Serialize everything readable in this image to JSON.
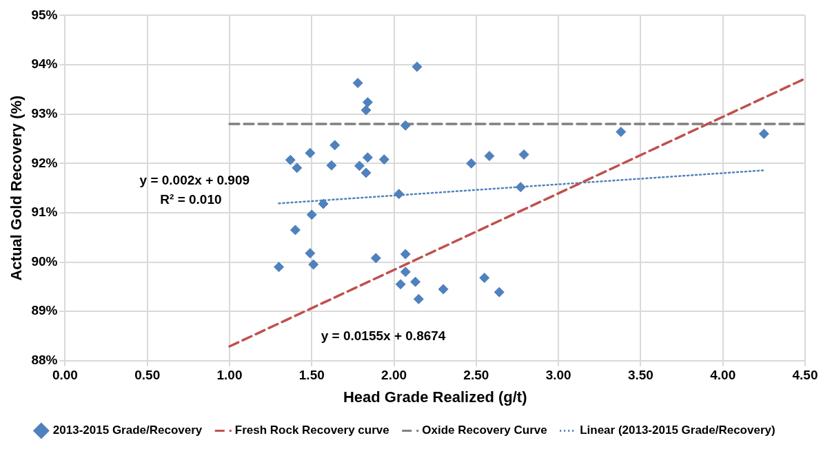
{
  "chart_data": {
    "type": "scatter",
    "xlabel": "Head Grade Realized (g/t)",
    "ylabel": "Actual Gold Recovery (%)",
    "xlim": [
      0,
      4.5
    ],
    "ylim": [
      88,
      95
    ],
    "xticks": [
      {
        "value": 0,
        "label": "0.00"
      },
      {
        "value": 0.5,
        "label": "0.50"
      },
      {
        "value": 1,
        "label": "1.00"
      },
      {
        "value": 1.5,
        "label": "1.50"
      },
      {
        "value": 2,
        "label": "2.00"
      },
      {
        "value": 2.5,
        "label": "2.50"
      },
      {
        "value": 3,
        "label": "3.00"
      },
      {
        "value": 3.5,
        "label": "3.50"
      },
      {
        "value": 4,
        "label": "4.00"
      },
      {
        "value": 4.5,
        "label": "4.50"
      }
    ],
    "yticks": [
      {
        "value": 88,
        "label": "88%"
      },
      {
        "value": 89,
        "label": "89%"
      },
      {
        "value": 90,
        "label": "90%"
      },
      {
        "value": 91,
        "label": "91%"
      },
      {
        "value": 92,
        "label": "92%"
      },
      {
        "value": 93,
        "label": "93%"
      },
      {
        "value": 94,
        "label": "94%"
      },
      {
        "value": 95,
        "label": "95%"
      }
    ],
    "grid": true,
    "legend": "bottom",
    "marker": "diamond",
    "series": [
      {
        "name": "2013-2015 Grade/Recovery",
        "color": "#4f81bd",
        "x": [
          1.3,
          1.37,
          1.41,
          1.49,
          1.4,
          1.5,
          1.49,
          1.51,
          1.57,
          1.62,
          1.64,
          1.78,
          1.84,
          1.83,
          1.79,
          1.84,
          1.83,
          1.94,
          1.89,
          2.14,
          2.07,
          2.03,
          2.07,
          2.07,
          2.04,
          2.13,
          2.15,
          2.3,
          2.47,
          2.58,
          2.79,
          2.77,
          2.55,
          2.64,
          3.38,
          4.25
        ],
        "values": [
          89.9,
          92.07,
          91.91,
          92.21,
          90.65,
          90.96,
          90.18,
          89.95,
          91.18,
          91.96,
          92.37,
          93.63,
          93.24,
          93.08,
          91.95,
          92.12,
          91.81,
          92.08,
          90.08,
          93.96,
          92.77,
          91.38,
          90.16,
          89.8,
          89.55,
          89.6,
          89.25,
          89.45,
          92.0,
          92.15,
          92.18,
          91.52,
          89.68,
          89.39,
          92.64,
          92.6
        ]
      },
      {
        "name": "Fresh Rock Recovery curve",
        "type": "line",
        "color": "#c0504d",
        "line_style": "dashed",
        "marker": "none",
        "x": [
          1,
          4.5
        ],
        "values": [
          88.29,
          93.72
        ]
      },
      {
        "name": "Oxide Recovery Curve",
        "type": "line",
        "color": "#808080",
        "line_style": "dashed",
        "marker": "none",
        "x": [
          1,
          4.5
        ],
        "values": [
          92.8,
          92.8
        ]
      },
      {
        "name": "Linear (2013-2015 Grade/Recovery)",
        "type": "line",
        "color": "#4f81bd",
        "line_style": "dotted",
        "marker": "none",
        "x": [
          1.3,
          4.25
        ],
        "values": [
          91.19,
          91.86
        ]
      }
    ],
    "annotations": [
      "y = 0.002x + 0.909",
      "R² = 0.010",
      "y = 0.0155x + 0.8674"
    ]
  }
}
